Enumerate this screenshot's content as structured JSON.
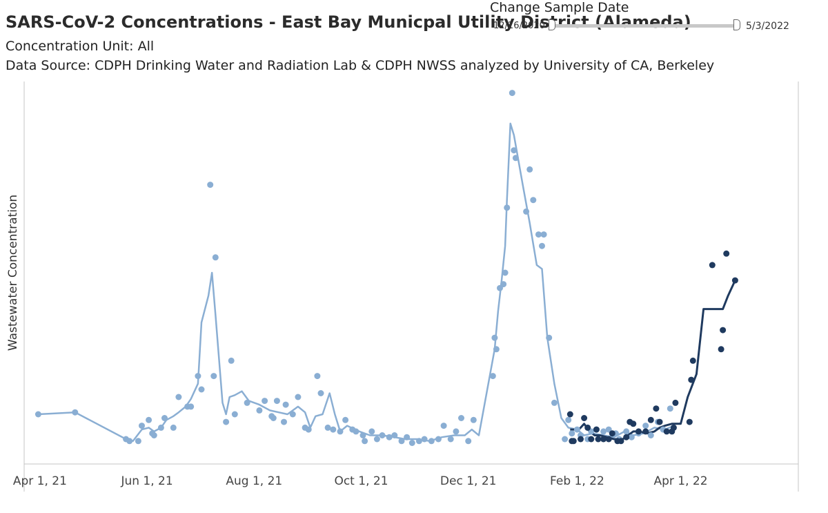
{
  "header": {
    "title": "SARS-CoV-2 Concentrations - East Bay Municpal Utility District (Alameda)",
    "concentration_unit": "Concentration Unit:  All",
    "data_source": "Data Source: CDPH Drinking Water and Radiation Lab & CDPH NWSS analyzed by University of CA, Berkeley"
  },
  "date_filter": {
    "title": "Change Sample Date",
    "min_label": "12/16/2020",
    "max_label": "5/3/2022",
    "range_low_fraction": 0.0,
    "range_high_fraction": 1.0
  },
  "colors": {
    "series_light": "#8aaed3",
    "series_dark": "#1f3a5f",
    "axis": "#c4c4c4"
  },
  "chart_data": {
    "type": "scatter",
    "title": "",
    "xlabel": "",
    "ylabel": "Wastewater Concentration",
    "x_ticks": [
      "Apr 1, 21",
      "Jun 1, 21",
      "Aug 1, 21",
      "Oct 1, 21",
      "Dec 1, 21",
      "Feb 1, 22",
      "Apr 1, 22"
    ],
    "xlim": [
      "2021-03-23",
      "2022-06-07"
    ],
    "ylim": [
      0,
      100
    ],
    "y_ticks_shown": false,
    "grid": false,
    "series": [
      {
        "color": "#8aaed3",
        "points": [
          [
            "2021-03-31",
            13
          ],
          [
            "2021-04-21",
            13.5
          ],
          [
            "2021-05-20",
            6.5
          ],
          [
            "2021-05-22",
            6
          ],
          [
            "2021-05-27",
            6
          ],
          [
            "2021-05-29",
            10
          ],
          [
            "2021-06-02",
            11.5
          ],
          [
            "2021-06-04",
            8
          ],
          [
            "2021-06-05",
            7.5
          ],
          [
            "2021-06-09",
            9.5
          ],
          [
            "2021-06-11",
            12
          ],
          [
            "2021-06-16",
            9.5
          ],
          [
            "2021-06-19",
            17.5
          ],
          [
            "2021-06-24",
            15
          ],
          [
            "2021-06-26",
            15
          ],
          [
            "2021-06-30",
            23
          ],
          [
            "2021-07-02",
            19.5
          ],
          [
            "2021-07-07",
            73
          ],
          [
            "2021-07-09",
            23
          ],
          [
            "2021-07-10",
            54
          ],
          [
            "2021-07-16",
            11
          ],
          [
            "2021-07-19",
            27
          ],
          [
            "2021-07-21",
            13
          ],
          [
            "2021-07-28",
            16
          ],
          [
            "2021-08-04",
            14
          ],
          [
            "2021-08-07",
            16.5
          ],
          [
            "2021-08-11",
            12.5
          ],
          [
            "2021-08-12",
            12
          ],
          [
            "2021-08-14",
            16.5
          ],
          [
            "2021-08-18",
            11
          ],
          [
            "2021-08-19",
            15.5
          ],
          [
            "2021-08-23",
            13
          ],
          [
            "2021-08-26",
            17.5
          ],
          [
            "2021-08-30",
            9.5
          ],
          [
            "2021-09-01",
            9
          ],
          [
            "2021-09-06",
            23
          ],
          [
            "2021-09-08",
            18.5
          ],
          [
            "2021-09-12",
            9.5
          ],
          [
            "2021-09-15",
            9
          ],
          [
            "2021-09-19",
            8.5
          ],
          [
            "2021-09-22",
            11.5
          ],
          [
            "2021-09-26",
            9
          ],
          [
            "2021-09-28",
            8.5
          ],
          [
            "2021-10-02",
            7.5
          ],
          [
            "2021-10-03",
            6
          ],
          [
            "2021-10-07",
            8.5
          ],
          [
            "2021-10-10",
            6.5
          ],
          [
            "2021-10-13",
            7.5
          ],
          [
            "2021-10-17",
            7
          ],
          [
            "2021-10-20",
            7.5
          ],
          [
            "2021-10-24",
            6
          ],
          [
            "2021-10-27",
            7
          ],
          [
            "2021-10-30",
            5.5
          ],
          [
            "2021-11-03",
            6
          ],
          [
            "2021-11-06",
            6.5
          ],
          [
            "2021-11-10",
            6
          ],
          [
            "2021-11-14",
            6.5
          ],
          [
            "2021-11-17",
            10
          ],
          [
            "2021-11-21",
            6.5
          ],
          [
            "2021-11-24",
            8.5
          ],
          [
            "2021-11-27",
            12
          ],
          [
            "2021-12-01",
            6
          ],
          [
            "2021-12-04",
            11.5
          ],
          [
            "2021-12-15",
            23
          ],
          [
            "2021-12-16",
            33
          ],
          [
            "2021-12-17",
            30
          ],
          [
            "2021-12-19",
            46
          ],
          [
            "2021-12-21",
            47
          ],
          [
            "2021-12-22",
            50
          ],
          [
            "2021-12-23",
            67
          ],
          [
            "2021-12-26",
            97
          ],
          [
            "2021-12-27",
            82
          ],
          [
            "2021-12-28",
            80
          ],
          [
            "2022-01-03",
            66
          ],
          [
            "2022-01-05",
            77
          ],
          [
            "2022-01-07",
            69
          ],
          [
            "2022-01-10",
            60
          ],
          [
            "2022-01-12",
            57
          ],
          [
            "2022-01-13",
            60
          ],
          [
            "2022-01-16",
            33
          ],
          [
            "2022-01-19",
            16
          ],
          [
            "2022-01-25",
            6.5
          ],
          [
            "2022-01-27",
            11.5
          ],
          [
            "2022-01-29",
            8
          ],
          [
            "2022-02-01",
            9
          ],
          [
            "2022-02-03",
            7.5
          ],
          [
            "2022-02-07",
            6.5
          ],
          [
            "2022-02-09",
            8.5
          ],
          [
            "2022-02-12",
            9
          ],
          [
            "2022-02-16",
            8.5
          ],
          [
            "2022-02-19",
            9
          ],
          [
            "2022-02-23",
            8
          ],
          [
            "2022-02-25",
            6.5
          ],
          [
            "2022-03-01",
            8.5
          ],
          [
            "2022-03-04",
            7
          ],
          [
            "2022-03-08",
            8
          ],
          [
            "2022-03-12",
            10
          ],
          [
            "2022-03-15",
            7.5
          ],
          [
            "2022-03-19",
            11
          ],
          [
            "2022-03-22",
            9
          ],
          [
            "2022-03-26",
            14.5
          ],
          [
            "2022-03-28",
            9.5
          ]
        ],
        "trend": [
          [
            "2021-03-31",
            13
          ],
          [
            "2021-04-21",
            13.5
          ],
          [
            "2021-05-20",
            6.5
          ],
          [
            "2021-05-24",
            6
          ],
          [
            "2021-05-29",
            9
          ],
          [
            "2021-06-02",
            9.5
          ],
          [
            "2021-06-05",
            8.5
          ],
          [
            "2021-06-09",
            9.5
          ],
          [
            "2021-06-12",
            11.5
          ],
          [
            "2021-06-16",
            12.5
          ],
          [
            "2021-06-19",
            13.5
          ],
          [
            "2021-06-23",
            15
          ],
          [
            "2021-06-26",
            17
          ],
          [
            "2021-06-30",
            21
          ],
          [
            "2021-07-02",
            37
          ],
          [
            "2021-07-06",
            44
          ],
          [
            "2021-07-08",
            50
          ],
          [
            "2021-07-10",
            39
          ],
          [
            "2021-07-14",
            16
          ],
          [
            "2021-07-16",
            13
          ],
          [
            "2021-07-18",
            17.5
          ],
          [
            "2021-07-21",
            18
          ],
          [
            "2021-07-25",
            19
          ],
          [
            "2021-07-29",
            16.5
          ],
          [
            "2021-08-04",
            15.5
          ],
          [
            "2021-08-10",
            14
          ],
          [
            "2021-08-15",
            13.5
          ],
          [
            "2021-08-20",
            13
          ],
          [
            "2021-08-26",
            15
          ],
          [
            "2021-08-30",
            13.5
          ],
          [
            "2021-09-02",
            9.5
          ],
          [
            "2021-09-05",
            12.5
          ],
          [
            "2021-09-09",
            13
          ],
          [
            "2021-09-13",
            18.5
          ],
          [
            "2021-09-16",
            13
          ],
          [
            "2021-09-19",
            8.5
          ],
          [
            "2021-09-23",
            10
          ],
          [
            "2021-09-30",
            8.5
          ],
          [
            "2021-10-06",
            7.5
          ],
          [
            "2021-10-13",
            7.5
          ],
          [
            "2021-10-20",
            7
          ],
          [
            "2021-10-26",
            6.5
          ],
          [
            "2021-11-02",
            6.5
          ],
          [
            "2021-11-09",
            6
          ],
          [
            "2021-11-16",
            7
          ],
          [
            "2021-11-23",
            7.5
          ],
          [
            "2021-11-29",
            7.5
          ],
          [
            "2021-12-03",
            9
          ],
          [
            "2021-12-07",
            7.5
          ],
          [
            "2021-12-16",
            30
          ],
          [
            "2021-12-18",
            40
          ],
          [
            "2021-12-20",
            48
          ],
          [
            "2021-12-22",
            57
          ],
          [
            "2021-12-23",
            69
          ],
          [
            "2021-12-25",
            89
          ],
          [
            "2021-12-27",
            86
          ],
          [
            "2022-01-01",
            73
          ],
          [
            "2022-01-05",
            63
          ],
          [
            "2022-01-09",
            52
          ],
          [
            "2022-01-12",
            51
          ],
          [
            "2022-01-15",
            33
          ],
          [
            "2022-01-19",
            21
          ],
          [
            "2022-01-23",
            12
          ],
          [
            "2022-01-27",
            9.5
          ],
          [
            "2022-02-01",
            9
          ],
          [
            "2022-02-05",
            7.5
          ],
          [
            "2022-02-10",
            8
          ],
          [
            "2022-02-16",
            7.5
          ],
          [
            "2022-02-22",
            7
          ],
          [
            "2022-02-28",
            8.5
          ],
          [
            "2022-03-05",
            7.5
          ],
          [
            "2022-03-11",
            8
          ],
          [
            "2022-03-17",
            9.5
          ],
          [
            "2022-03-23",
            9
          ],
          [
            "2022-03-28",
            10
          ]
        ]
      },
      {
        "color": "#1f3a5f",
        "points": [
          [
            "2022-01-28",
            13
          ],
          [
            "2022-01-29",
            6
          ],
          [
            "2022-01-30",
            6
          ],
          [
            "2022-02-03",
            6.5
          ],
          [
            "2022-02-05",
            12
          ],
          [
            "2022-02-07",
            9.5
          ],
          [
            "2022-02-09",
            6.5
          ],
          [
            "2022-02-12",
            9
          ],
          [
            "2022-02-13",
            6.5
          ],
          [
            "2022-02-16",
            6.5
          ],
          [
            "2022-02-19",
            6.5
          ],
          [
            "2022-02-21",
            8
          ],
          [
            "2022-02-24",
            6
          ],
          [
            "2022-02-26",
            6
          ],
          [
            "2022-03-01",
            7
          ],
          [
            "2022-03-03",
            11
          ],
          [
            "2022-03-05",
            10.5
          ],
          [
            "2022-03-08",
            8.5
          ],
          [
            "2022-03-12",
            8.5
          ],
          [
            "2022-03-15",
            11.5
          ],
          [
            "2022-03-18",
            14.5
          ],
          [
            "2022-03-20",
            11
          ],
          [
            "2022-03-24",
            8.5
          ],
          [
            "2022-03-27",
            8.5
          ],
          [
            "2022-03-28",
            9.5
          ],
          [
            "2022-03-29",
            16
          ],
          [
            "2022-04-06",
            11
          ],
          [
            "2022-04-07",
            22
          ],
          [
            "2022-04-08",
            27
          ],
          [
            "2022-04-19",
            52
          ],
          [
            "2022-04-24",
            30
          ],
          [
            "2022-04-25",
            35
          ],
          [
            "2022-04-27",
            55
          ],
          [
            "2022-05-02",
            48
          ]
        ],
        "trend": [
          [
            "2022-01-28",
            9
          ],
          [
            "2022-02-02",
            9
          ],
          [
            "2022-02-05",
            10.5
          ],
          [
            "2022-02-08",
            8.5
          ],
          [
            "2022-02-11",
            7.5
          ],
          [
            "2022-02-14",
            7.5
          ],
          [
            "2022-02-18",
            7
          ],
          [
            "2022-02-22",
            6.5
          ],
          [
            "2022-02-27",
            6.5
          ],
          [
            "2022-03-02",
            7.5
          ],
          [
            "2022-03-05",
            8.5
          ],
          [
            "2022-03-08",
            8.5
          ],
          [
            "2022-03-13",
            8
          ],
          [
            "2022-03-17",
            8.5
          ],
          [
            "2022-03-20",
            9.5
          ],
          [
            "2022-03-23",
            10
          ],
          [
            "2022-03-27",
            10.5
          ],
          [
            "2022-04-01",
            10.5
          ],
          [
            "2022-04-05",
            17.5
          ],
          [
            "2022-04-10",
            23.5
          ],
          [
            "2022-04-14",
            40.5
          ],
          [
            "2022-04-19",
            40.5
          ],
          [
            "2022-04-25",
            40.5
          ],
          [
            "2022-04-28",
            44
          ],
          [
            "2022-05-02",
            48
          ]
        ]
      }
    ]
  }
}
